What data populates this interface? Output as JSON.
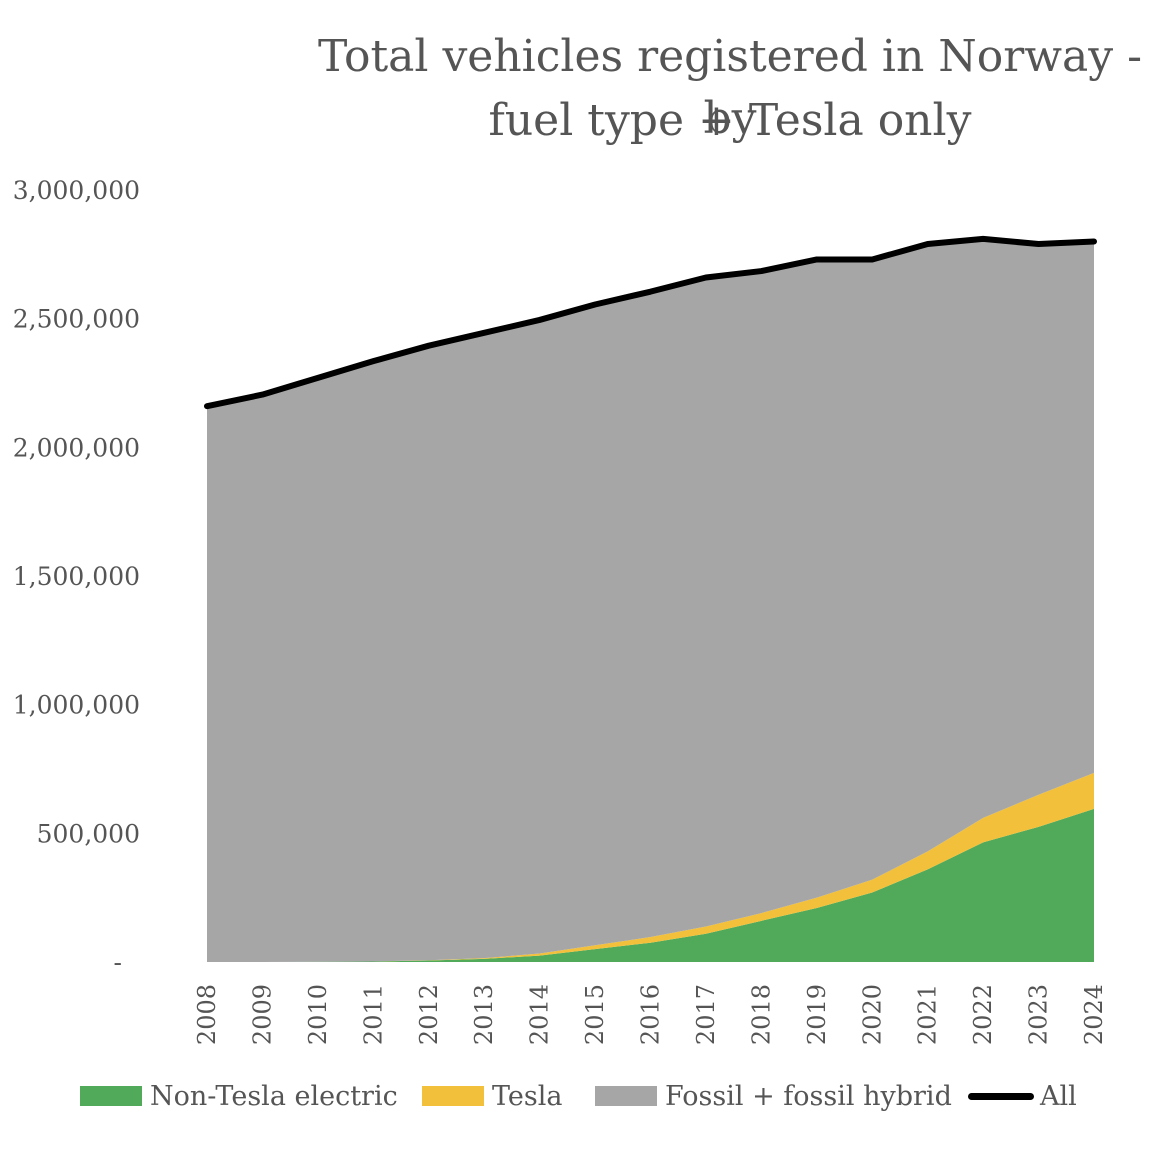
{
  "chart_data": {
    "type": "area",
    "title_lines": [
      "Total vehicles registered in Norway - by",
      "fuel type + Tesla only"
    ],
    "x": [
      "2008",
      "2009",
      "2010",
      "2011",
      "2012",
      "2013",
      "2014",
      "2015",
      "2016",
      "2017",
      "2018",
      "2019",
      "2020",
      "2021",
      "2022",
      "2023",
      "2024"
    ],
    "stacked": true,
    "series": [
      {
        "name": "Non-Tesla electric",
        "color": "#50AA5A",
        "values": [
          0,
          0,
          1000,
          2000,
          6000,
          12000,
          25000,
          50000,
          75000,
          110000,
          160000,
          210000,
          270000,
          360000,
          465000,
          525000,
          595000
        ]
      },
      {
        "name": "Tesla",
        "color": "#F2C03A",
        "values": [
          0,
          0,
          0,
          0,
          1000,
          3000,
          8000,
          15000,
          22000,
          28000,
          30000,
          40000,
          50000,
          70000,
          95000,
          125000,
          140000
        ]
      },
      {
        "name": "Fossil + fossil hybrid",
        "color": "#A6A6A6",
        "values": [
          2160000,
          2205000,
          2269000,
          2333000,
          2388000,
          2430000,
          2462000,
          2490000,
          2508000,
          2522000,
          2495000,
          2480000,
          2410000,
          2360000,
          2250000,
          2140000,
          2065000
        ]
      }
    ],
    "line_series": {
      "name": "All",
      "color": "#000000",
      "values": [
        2160000,
        2205000,
        2270000,
        2335000,
        2395000,
        2445000,
        2495000,
        2555000,
        2605000,
        2660000,
        2685000,
        2730000,
        2730000,
        2790000,
        2810000,
        2790000,
        2800000
      ]
    },
    "ylim": [
      0,
      3000000
    ],
    "yticks": [
      {
        "value": 0,
        "label": "-"
      },
      {
        "value": 500000,
        "label": "500,000"
      },
      {
        "value": 1000000,
        "label": "1,000,000"
      },
      {
        "value": 1500000,
        "label": "1,500,000"
      },
      {
        "value": 2000000,
        "label": "2,000,000"
      },
      {
        "value": 2500000,
        "label": "2,500,000"
      },
      {
        "value": 3000000,
        "label": "3,000,000"
      }
    ],
    "grid": false,
    "legend_position": "bottom"
  }
}
